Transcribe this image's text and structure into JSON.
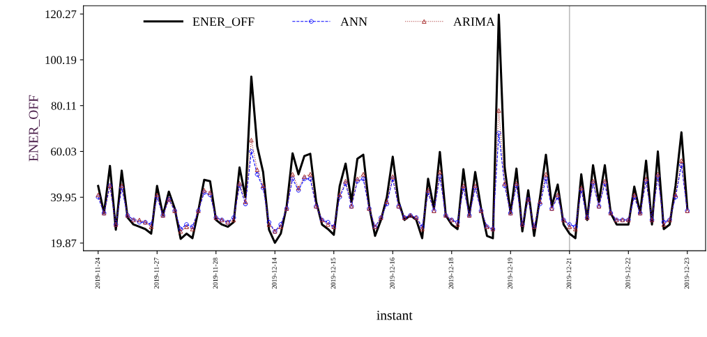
{
  "chart_data": {
    "type": "line",
    "xlabel": "instant",
    "ylabel": "ENER_OFF",
    "categories": [
      "2019-11-24",
      null,
      null,
      null,
      null,
      null,
      null,
      null,
      null,
      null,
      "2019-11-27",
      null,
      null,
      null,
      null,
      null,
      null,
      null,
      null,
      null,
      "2019-11-28",
      null,
      null,
      null,
      null,
      null,
      null,
      null,
      null,
      null,
      "2019-12-14",
      null,
      null,
      null,
      null,
      null,
      null,
      null,
      null,
      null,
      "2019-12-15",
      null,
      null,
      null,
      null,
      null,
      null,
      null,
      null,
      null,
      "2019-12-16",
      null,
      null,
      null,
      null,
      null,
      null,
      null,
      null,
      null,
      "2019-12-18",
      null,
      null,
      null,
      null,
      null,
      null,
      null,
      null,
      null,
      "2019-12-19",
      null,
      null,
      null,
      null,
      null,
      null,
      null,
      null,
      null,
      "2019-12-21",
      null,
      null,
      null,
      null,
      null,
      null,
      null,
      null,
      null,
      "2019-12-22",
      null,
      null,
      null,
      null,
      null,
      null,
      null,
      null,
      null,
      "2019-12-23"
    ],
    "series": [
      {
        "name": "ENER_OFF",
        "color": "#000000",
        "marker": "none",
        "line_style": "solid",
        "values": [
          44.9,
          33,
          53.7,
          25.7,
          51.6,
          31,
          28,
          27,
          26,
          24,
          44.9,
          32,
          42.4,
          35,
          21.7,
          24,
          22,
          34,
          47.6,
          47,
          30,
          28,
          27,
          29,
          53,
          40,
          92.8,
          62.3,
          51,
          25.7,
          20,
          24,
          36,
          59.2,
          50,
          58,
          59,
          38,
          28,
          26,
          23.5,
          44.9,
          54.7,
          38,
          56.8,
          58.6,
          36,
          23,
          30,
          40,
          57.7,
          38,
          30,
          32,
          30,
          22,
          48,
          35,
          59.8,
          32,
          28,
          26,
          52.2,
          32,
          51,
          35,
          23,
          22,
          120,
          53,
          33,
          52.5,
          25,
          43,
          23,
          40,
          58.6,
          36,
          45.5,
          28,
          24,
          22,
          50,
          30,
          54,
          38,
          54,
          33,
          28,
          28,
          28,
          44.6,
          33,
          56,
          28,
          60,
          26,
          28,
          45,
          68.4,
          35
        ]
      },
      {
        "name": "ANN",
        "color": "#0000ff",
        "marker": "circle",
        "line_style": "dashed",
        "values": [
          40,
          33,
          45,
          28,
          44,
          32,
          30,
          29,
          29,
          28,
          40,
          32,
          39,
          34,
          26,
          28,
          27,
          34,
          42,
          41,
          31,
          30,
          29,
          31,
          45,
          37,
          60,
          50,
          44,
          29,
          25,
          28,
          35,
          48,
          43,
          48,
          48,
          36,
          30,
          29,
          27,
          40,
          46,
          36,
          47,
          48,
          35,
          27,
          31,
          37,
          48,
          36,
          31,
          32,
          31,
          27,
          42,
          34,
          49,
          32,
          30,
          29,
          44,
          32,
          44,
          34,
          27,
          26,
          68,
          45,
          33,
          45,
          28,
          39,
          27,
          37,
          48,
          35,
          40,
          30,
          28,
          27,
          43,
          31,
          46,
          36,
          46,
          33,
          30,
          30,
          30,
          40,
          33,
          47,
          30,
          49,
          29,
          30,
          40,
          54,
          34
        ]
      },
      {
        "name": "ARIMA",
        "color": "#a52a2a",
        "marker": "triangle",
        "line_style": "dotted",
        "values": [
          41,
          33,
          45,
          28,
          45,
          32,
          30,
          30,
          29,
          27,
          41,
          32,
          39,
          34,
          25,
          27,
          26,
          34,
          43,
          42,
          31,
          30,
          29,
          30,
          46,
          38,
          65,
          52,
          45,
          28,
          25,
          27,
          35,
          50,
          44,
          49,
          50,
          36,
          30,
          28,
          27,
          41,
          47,
          36,
          48,
          50,
          35,
          27,
          31,
          38,
          49,
          36,
          31,
          32,
          31,
          26,
          43,
          34,
          51,
          32,
          30,
          28,
          45,
          32,
          45,
          34,
          27,
          26,
          78,
          46,
          33,
          46,
          28,
          39,
          27,
          38,
          50,
          35,
          41,
          30,
          27,
          26,
          44,
          31,
          47,
          36,
          47,
          33,
          30,
          30,
          30,
          41,
          33,
          48,
          30,
          50,
          28,
          30,
          41,
          56,
          34
        ]
      }
    ],
    "ylim": [
      16.5,
      123.9
    ],
    "yticks": [
      19.87,
      39.95,
      60.03,
      80.11,
      100.19,
      120.27
    ],
    "ref_lines": [
      {
        "axis": "x",
        "value": "2019-12-21",
        "color": "#bebebe"
      }
    ],
    "grid": false,
    "legend": "top left"
  }
}
